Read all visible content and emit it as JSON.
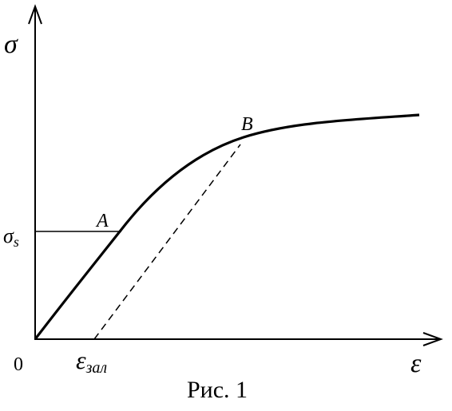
{
  "axes": {
    "y_label": "σ",
    "x_label": "ε",
    "origin": "0"
  },
  "levels": {
    "yield": {
      "symbol": "σ",
      "subscript": "s"
    },
    "residual": {
      "symbol": "ε",
      "subscript": "зал"
    }
  },
  "points": [
    {
      "label": "A"
    },
    {
      "label": "B"
    }
  ],
  "caption": "Рис. 1"
}
